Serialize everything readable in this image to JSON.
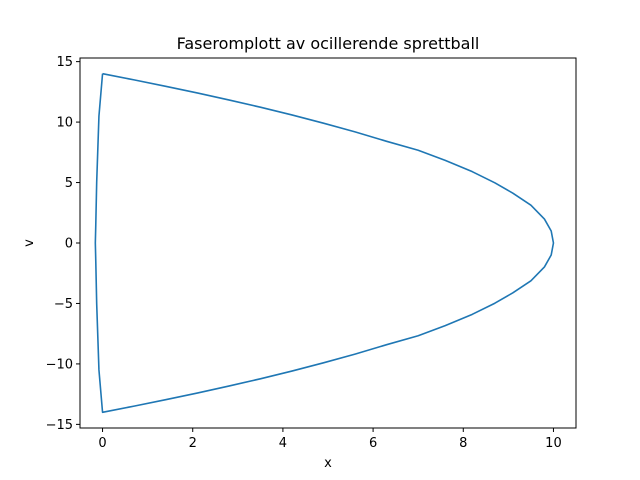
{
  "chart_data": {
    "type": "line",
    "title": "Faseromplott av ocillerende sprettball",
    "xlabel": "x",
    "ylabel": "v",
    "xlim": [
      -0.5,
      10.5
    ],
    "ylim": [
      -15.3,
      15.3
    ],
    "xticks": [
      0,
      2,
      4,
      6,
      8,
      10
    ],
    "yticks": [
      -15,
      -10,
      -5,
      0,
      5,
      10,
      15
    ],
    "grid": false,
    "line_color": "#1f77b4",
    "series": [
      {
        "x": [
          0.0,
          0.7,
          1.4,
          2.1,
          2.8,
          3.5,
          4.2,
          4.9,
          5.6,
          6.3,
          7.0,
          7.6,
          8.2,
          8.7,
          9.1,
          9.5,
          9.8,
          9.95,
          10.0,
          9.95,
          9.8,
          9.5,
          9.1,
          8.7,
          8.2,
          7.6,
          7.0,
          6.3,
          5.6,
          4.9,
          4.2,
          3.5,
          2.8,
          2.1,
          1.4,
          0.7,
          0.0,
          -0.08,
          -0.13,
          -0.15,
          -0.16,
          -0.15,
          -0.13,
          -0.08,
          0.0
        ],
        "y": [
          14.0,
          13.49,
          12.96,
          12.41,
          11.83,
          11.23,
          10.59,
          9.91,
          9.19,
          8.41,
          7.67,
          6.83,
          5.9,
          4.98,
          4.12,
          3.13,
          1.98,
          0.99,
          0.0,
          -0.99,
          -1.98,
          -3.13,
          -4.12,
          -4.98,
          -5.9,
          -6.83,
          -7.67,
          -8.41,
          -9.19,
          -9.91,
          -10.59,
          -11.23,
          -11.83,
          -12.41,
          -12.96,
          -13.49,
          -14.0,
          -10.5,
          -5.0,
          -1.5,
          0.0,
          1.5,
          5.0,
          10.5,
          14.0
        ]
      }
    ]
  }
}
